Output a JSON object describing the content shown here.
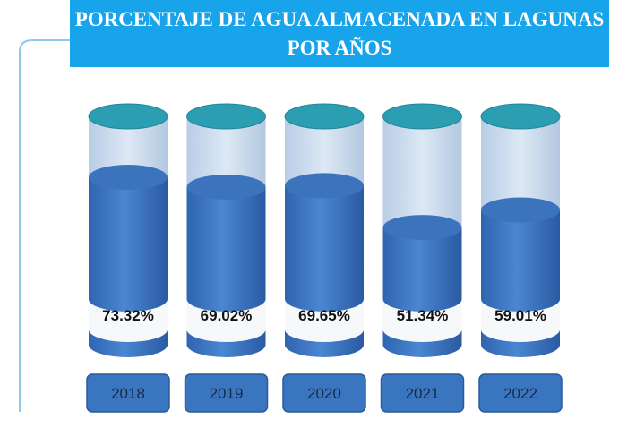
{
  "chart_data": {
    "type": "bar",
    "title": "PORCENTAJE DE AGUA ALMACENADA EN LAGUNAS POR AÑOS",
    "categories": [
      "2018",
      "2019",
      "2020",
      "2021",
      "2022"
    ],
    "values": [
      73.32,
      69.02,
      69.65,
      51.34,
      59.01
    ],
    "value_labels": [
      "73.32%",
      "69.02%",
      "69.65%",
      "51.34%",
      "59.01%"
    ],
    "color": "#3a76c4",
    "ylim": [
      0,
      100
    ]
  }
}
